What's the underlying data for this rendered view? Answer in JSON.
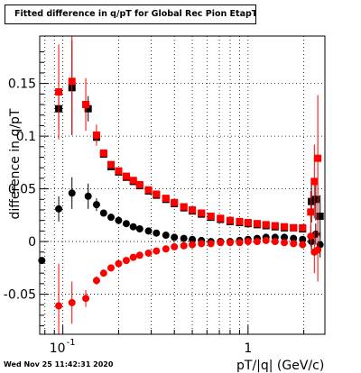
{
  "chart_data": {
    "type": "scatter",
    "title": "Fitted difference in q/pT for Global Rec Pion EtapT",
    "xlabel": "pT/|q| (GeV/c)",
    "ylabel": "difference in q/pT",
    "xscale": "log",
    "xlim": [
      0.075,
      2.6
    ],
    "ylim": [
      -0.088,
      0.195
    ],
    "grid": true,
    "legend": "none",
    "x_ticks": [
      {
        "value": 0.1,
        "label": "10",
        "exponent": "-1"
      },
      {
        "value": 1,
        "label": "1",
        "exponent": ""
      }
    ],
    "y_ticks": [
      {
        "value": 0.15,
        "label": "0.15"
      },
      {
        "value": 0.1,
        "label": "0.1"
      },
      {
        "value": 0.05,
        "label": "0.05"
      },
      {
        "value": 0,
        "label": "0"
      },
      {
        "value": -0.05,
        "label": "-0.05"
      }
    ],
    "timestamp": "Wed Nov 25 11:42:31 2020",
    "series": [
      {
        "color": "#000000",
        "marker": "square",
        "points": [
          {
            "x": 0.095,
            "y": 0.126,
            "yerr": 0.02
          },
          {
            "x": 0.112,
            "y": 0.146,
            "yerr": 0.045
          },
          {
            "x": 0.137,
            "y": 0.126,
            "yerr": 0.012
          },
          {
            "x": 0.152,
            "y": 0.099,
            "yerr": 0.005
          },
          {
            "x": 0.166,
            "y": 0.083
          },
          {
            "x": 0.182,
            "y": 0.071
          },
          {
            "x": 0.2,
            "y": 0.066
          },
          {
            "x": 0.22,
            "y": 0.061
          },
          {
            "x": 0.24,
            "y": 0.057
          },
          {
            "x": 0.26,
            "y": 0.053
          },
          {
            "x": 0.29,
            "y": 0.048
          },
          {
            "x": 0.32,
            "y": 0.044
          },
          {
            "x": 0.36,
            "y": 0.04
          },
          {
            "x": 0.4,
            "y": 0.036
          },
          {
            "x": 0.45,
            "y": 0.032
          },
          {
            "x": 0.5,
            "y": 0.029
          },
          {
            "x": 0.56,
            "y": 0.026
          },
          {
            "x": 0.63,
            "y": 0.023
          },
          {
            "x": 0.71,
            "y": 0.021
          },
          {
            "x": 0.8,
            "y": 0.019
          },
          {
            "x": 0.9,
            "y": 0.018
          },
          {
            "x": 1.0,
            "y": 0.017
          },
          {
            "x": 1.12,
            "y": 0.016
          },
          {
            "x": 1.25,
            "y": 0.015
          },
          {
            "x": 1.4,
            "y": 0.014
          },
          {
            "x": 1.57,
            "y": 0.013
          },
          {
            "x": 1.76,
            "y": 0.013
          },
          {
            "x": 1.97,
            "y": 0.012
          },
          {
            "x": 2.2,
            "y": 0.038,
            "yerr": 0.02
          },
          {
            "x": 2.32,
            "y": 0.04,
            "yerr": 0.02
          },
          {
            "x": 2.45,
            "y": 0.024,
            "yerr": 0.02
          }
        ]
      },
      {
        "color": "#ff0000",
        "marker": "square",
        "points": [
          {
            "x": 0.095,
            "y": 0.142,
            "yerr": 0.045
          },
          {
            "x": 0.112,
            "y": 0.152,
            "yerr": 0.05
          },
          {
            "x": 0.133,
            "y": 0.13,
            "yerr": 0.025
          },
          {
            "x": 0.152,
            "y": 0.101,
            "yerr": 0.01
          },
          {
            "x": 0.166,
            "y": 0.084
          },
          {
            "x": 0.182,
            "y": 0.073
          },
          {
            "x": 0.2,
            "y": 0.067
          },
          {
            "x": 0.22,
            "y": 0.062
          },
          {
            "x": 0.24,
            "y": 0.058
          },
          {
            "x": 0.26,
            "y": 0.054
          },
          {
            "x": 0.29,
            "y": 0.049
          },
          {
            "x": 0.32,
            "y": 0.045
          },
          {
            "x": 0.36,
            "y": 0.041
          },
          {
            "x": 0.4,
            "y": 0.037
          },
          {
            "x": 0.45,
            "y": 0.033
          },
          {
            "x": 0.5,
            "y": 0.03
          },
          {
            "x": 0.56,
            "y": 0.027
          },
          {
            "x": 0.63,
            "y": 0.024
          },
          {
            "x": 0.71,
            "y": 0.022
          },
          {
            "x": 0.8,
            "y": 0.02
          },
          {
            "x": 0.9,
            "y": 0.019
          },
          {
            "x": 1.0,
            "y": 0.018
          },
          {
            "x": 1.12,
            "y": 0.017
          },
          {
            "x": 1.25,
            "y": 0.016
          },
          {
            "x": 1.4,
            "y": 0.015
          },
          {
            "x": 1.57,
            "y": 0.014
          },
          {
            "x": 1.76,
            "y": 0.013
          },
          {
            "x": 1.97,
            "y": 0.013
          },
          {
            "x": 2.18,
            "y": 0.028,
            "yerr": 0.02
          },
          {
            "x": 2.28,
            "y": 0.057,
            "yerr": 0.035
          },
          {
            "x": 2.38,
            "y": 0.079,
            "yerr": 0.06
          }
        ]
      },
      {
        "color": "#000000",
        "marker": "circle",
        "points": [
          {
            "x": 0.077,
            "y": -0.018
          },
          {
            "x": 0.095,
            "y": 0.031,
            "yerr": 0.012
          },
          {
            "x": 0.112,
            "y": 0.046,
            "yerr": 0.015
          },
          {
            "x": 0.137,
            "y": 0.043,
            "yerr": 0.012
          },
          {
            "x": 0.152,
            "y": 0.035,
            "yerr": 0.006
          },
          {
            "x": 0.166,
            "y": 0.027
          },
          {
            "x": 0.182,
            "y": 0.023
          },
          {
            "x": 0.2,
            "y": 0.02
          },
          {
            "x": 0.22,
            "y": 0.017
          },
          {
            "x": 0.24,
            "y": 0.014
          },
          {
            "x": 0.26,
            "y": 0.012
          },
          {
            "x": 0.29,
            "y": 0.01
          },
          {
            "x": 0.32,
            "y": 0.008
          },
          {
            "x": 0.36,
            "y": 0.006
          },
          {
            "x": 0.4,
            "y": 0.004
          },
          {
            "x": 0.45,
            "y": 0.003
          },
          {
            "x": 0.5,
            "y": 0.002
          },
          {
            "x": 0.56,
            "y": 0.001
          },
          {
            "x": 0.63,
            "y": 0.0
          },
          {
            "x": 0.71,
            "y": 0.0
          },
          {
            "x": 0.8,
            "y": 0.0
          },
          {
            "x": 0.9,
            "y": 0.001
          },
          {
            "x": 1.0,
            "y": 0.002
          },
          {
            "x": 1.12,
            "y": 0.003
          },
          {
            "x": 1.25,
            "y": 0.004
          },
          {
            "x": 1.4,
            "y": 0.004
          },
          {
            "x": 1.57,
            "y": 0.004
          },
          {
            "x": 1.76,
            "y": 0.003
          },
          {
            "x": 1.97,
            "y": 0.002
          },
          {
            "x": 2.2,
            "y": 0.0,
            "yerr": 0.008
          },
          {
            "x": 2.32,
            "y": 0.007,
            "yerr": 0.01
          },
          {
            "x": 2.45,
            "y": -0.003,
            "yerr": 0.012
          }
        ]
      },
      {
        "color": "#ff0000",
        "marker": "circle",
        "points": [
          {
            "x": 0.095,
            "y": -0.061,
            "yerr": 0.04
          },
          {
            "x": 0.112,
            "y": -0.058,
            "yerr": 0.02
          },
          {
            "x": 0.133,
            "y": -0.054,
            "yerr": 0.008
          },
          {
            "x": 0.152,
            "y": -0.037,
            "yerr": 0.004
          },
          {
            "x": 0.166,
            "y": -0.03
          },
          {
            "x": 0.182,
            "y": -0.025
          },
          {
            "x": 0.2,
            "y": -0.021
          },
          {
            "x": 0.22,
            "y": -0.018
          },
          {
            "x": 0.24,
            "y": -0.015
          },
          {
            "x": 0.26,
            "y": -0.013
          },
          {
            "x": 0.29,
            "y": -0.011
          },
          {
            "x": 0.32,
            "y": -0.009
          },
          {
            "x": 0.36,
            "y": -0.007
          },
          {
            "x": 0.4,
            "y": -0.005
          },
          {
            "x": 0.45,
            "y": -0.004
          },
          {
            "x": 0.5,
            "y": -0.003
          },
          {
            "x": 0.56,
            "y": -0.002
          },
          {
            "x": 0.63,
            "y": -0.002
          },
          {
            "x": 0.71,
            "y": -0.001
          },
          {
            "x": 0.8,
            "y": -0.001
          },
          {
            "x": 0.9,
            "y": -0.001
          },
          {
            "x": 1.0,
            "y": 0.0
          },
          {
            "x": 1.12,
            "y": 0.0
          },
          {
            "x": 1.25,
            "y": 0.001
          },
          {
            "x": 1.4,
            "y": 0.0
          },
          {
            "x": 1.57,
            "y": -0.001
          },
          {
            "x": 1.76,
            "y": -0.002
          },
          {
            "x": 1.97,
            "y": -0.003
          },
          {
            "x": 2.18,
            "y": 0.005,
            "yerr": 0.01
          },
          {
            "x": 2.28,
            "y": -0.01,
            "yerr": 0.02
          },
          {
            "x": 2.38,
            "y": -0.008,
            "yerr": 0.03
          }
        ]
      }
    ]
  }
}
